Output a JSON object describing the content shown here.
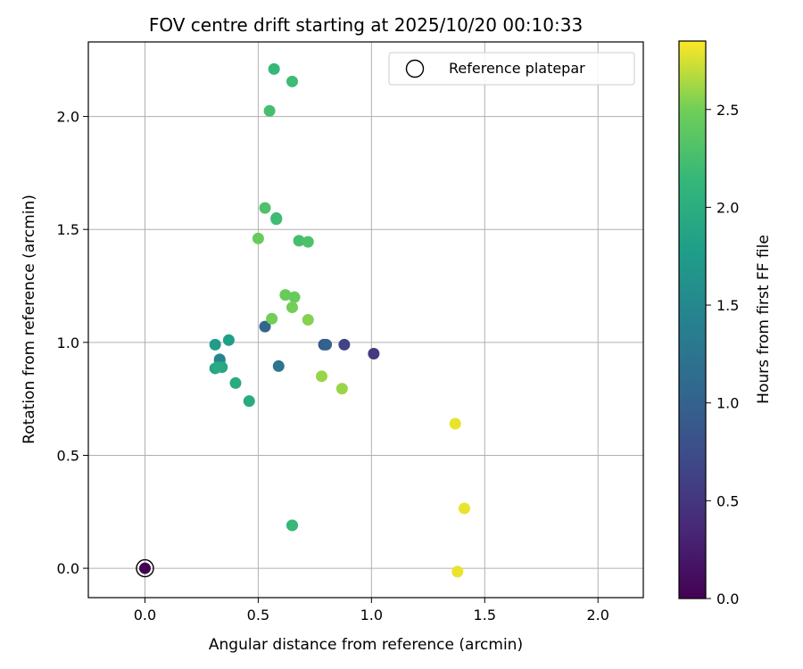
{
  "chart_data": {
    "type": "scatter",
    "title": "FOV centre drift starting at 2025/10/20 00:10:33",
    "xlabel": "Angular distance from reference (arcmin)",
    "ylabel": "Rotation from reference (arcmin)",
    "xlim": [
      -0.25,
      2.2
    ],
    "ylim": [
      -0.13,
      2.33
    ],
    "xticks": [
      0.0,
      0.5,
      1.0,
      1.5,
      2.0
    ],
    "xtick_labels": [
      "0.0",
      "0.5",
      "1.0",
      "1.5",
      "2.0"
    ],
    "yticks": [
      0.0,
      0.5,
      1.0,
      1.5,
      2.0
    ],
    "ytick_labels": [
      "0.0",
      "0.5",
      "1.0",
      "1.5",
      "2.0"
    ],
    "grid": true,
    "colormap": "viridis",
    "colorbar": {
      "label": "Hours from first FF file",
      "range": [
        0,
        2.85
      ],
      "ticks": [
        0.0,
        0.5,
        1.0,
        1.5,
        2.0,
        2.5
      ],
      "tick_labels": [
        "0.0",
        "0.5",
        "1.0",
        "1.5",
        "2.0",
        "2.5"
      ]
    },
    "legend": {
      "label": "Reference platepar",
      "location": "top-right"
    },
    "reference_point": {
      "x": 0.0,
      "y": 0.0
    },
    "points": [
      {
        "x": 0.0,
        "y": 0.0,
        "hours": 0.0
      },
      {
        "x": 1.01,
        "y": 0.95,
        "hours": 0.55
      },
      {
        "x": 0.88,
        "y": 0.99,
        "hours": 0.65
      },
      {
        "x": 0.79,
        "y": 0.99,
        "hours": 0.9
      },
      {
        "x": 0.8,
        "y": 0.99,
        "hours": 1.0
      },
      {
        "x": 0.53,
        "y": 1.07,
        "hours": 1.05
      },
      {
        "x": 0.59,
        "y": 0.895,
        "hours": 1.25
      },
      {
        "x": 0.33,
        "y": 0.92,
        "hours": 1.35
      },
      {
        "x": 0.33,
        "y": 0.925,
        "hours": 1.45
      },
      {
        "x": 0.31,
        "y": 0.99,
        "hours": 1.75
      },
      {
        "x": 0.37,
        "y": 1.01,
        "hours": 1.8
      },
      {
        "x": 0.31,
        "y": 0.885,
        "hours": 1.85
      },
      {
        "x": 0.34,
        "y": 0.89,
        "hours": 1.9
      },
      {
        "x": 0.32,
        "y": 0.89,
        "hours": 1.95
      },
      {
        "x": 0.4,
        "y": 0.82,
        "hours": 1.95
      },
      {
        "x": 0.46,
        "y": 0.74,
        "hours": 1.95
      },
      {
        "x": 0.65,
        "y": 0.19,
        "hours": 2.1
      },
      {
        "x": 0.65,
        "y": 0.19,
        "hours": 2.15
      },
      {
        "x": 0.57,
        "y": 2.21,
        "hours": 2.15
      },
      {
        "x": 0.65,
        "y": 2.155,
        "hours": 2.2
      },
      {
        "x": 0.55,
        "y": 2.025,
        "hours": 2.25
      },
      {
        "x": 0.58,
        "y": 1.55,
        "hours": 2.15
      },
      {
        "x": 0.58,
        "y": 1.545,
        "hours": 2.2
      },
      {
        "x": 0.53,
        "y": 1.595,
        "hours": 2.3
      },
      {
        "x": 0.68,
        "y": 1.45,
        "hours": 2.25
      },
      {
        "x": 0.72,
        "y": 1.445,
        "hours": 2.3
      },
      {
        "x": 0.5,
        "y": 1.46,
        "hours": 2.45
      },
      {
        "x": 0.62,
        "y": 1.21,
        "hours": 2.45
      },
      {
        "x": 0.66,
        "y": 1.2,
        "hours": 2.45
      },
      {
        "x": 0.65,
        "y": 1.155,
        "hours": 2.5
      },
      {
        "x": 0.56,
        "y": 1.105,
        "hours": 2.5
      },
      {
        "x": 0.72,
        "y": 1.1,
        "hours": 2.55
      },
      {
        "x": 0.78,
        "y": 0.85,
        "hours": 2.6
      },
      {
        "x": 0.87,
        "y": 0.795,
        "hours": 2.6
      },
      {
        "x": 1.37,
        "y": 0.64,
        "hours": 2.8
      },
      {
        "x": 1.41,
        "y": 0.265,
        "hours": 2.8
      },
      {
        "x": 1.38,
        "y": -0.015,
        "hours": 2.8
      }
    ]
  }
}
